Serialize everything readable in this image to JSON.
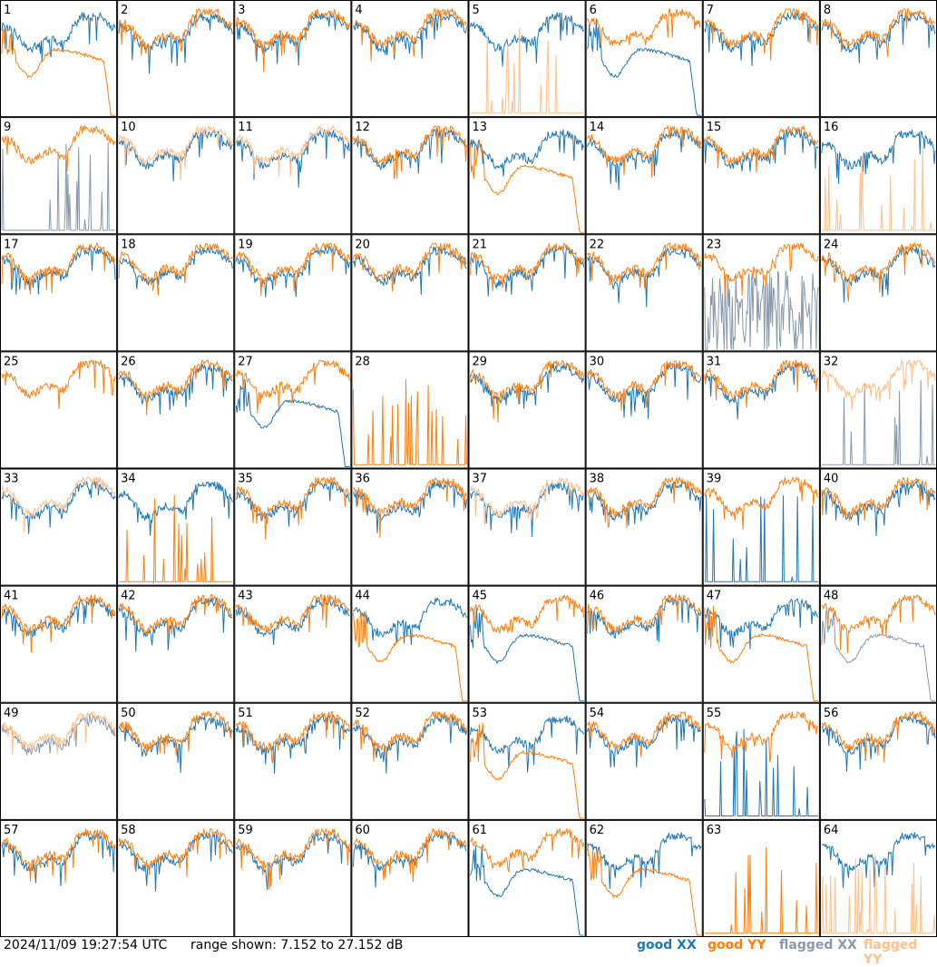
{
  "colors": {
    "good_xx": "#1f77b4",
    "good_yy": "#ff7f0e",
    "flagged_xx": "#8899aa",
    "flagged_yy": "#ffc08a",
    "grid_line": "#000000"
  },
  "footer": {
    "timestamp": "2024/11/09 19:27:54 UTC",
    "range_text": "range shown: 7.152 to 27.152 dB"
  },
  "legend": [
    {
      "label": "good XX",
      "color_key": "good_xx"
    },
    {
      "label": "good YY",
      "color_key": "good_yy"
    },
    {
      "label": "flagged XX",
      "color_key": "flagged_xx"
    },
    {
      "label": "flagged YY",
      "color_key": "flagged_yy"
    }
  ],
  "chart_data": {
    "type": "line",
    "layout_grid": "8x8 small multiples",
    "y_range_db": [
      7.152,
      27.152
    ],
    "panels": [
      {
        "id": 1,
        "xx": "normal",
        "yy": "decay"
      },
      {
        "id": 2,
        "xx": "normal",
        "yy": "normal"
      },
      {
        "id": 3,
        "xx": "normal",
        "yy": "normal"
      },
      {
        "id": 4,
        "xx": "normal",
        "yy": "normal"
      },
      {
        "id": 5,
        "xx": "normal",
        "yy": "spikes_flagged"
      },
      {
        "id": 6,
        "xx": "decay",
        "yy": "normal"
      },
      {
        "id": 7,
        "xx": "normal",
        "yy": "normal"
      },
      {
        "id": 8,
        "xx": "normal",
        "yy": "normal"
      },
      {
        "id": 9,
        "xx": "spikes_flagged",
        "yy": "normal"
      },
      {
        "id": 10,
        "xx": "normal",
        "yy": "flagged"
      },
      {
        "id": 11,
        "xx": "normal",
        "yy": "flagged"
      },
      {
        "id": 12,
        "xx": "normal",
        "yy": "normal"
      },
      {
        "id": 13,
        "xx": "normal",
        "yy": "decay"
      },
      {
        "id": 14,
        "xx": "normal",
        "yy": "normal"
      },
      {
        "id": 15,
        "xx": "normal",
        "yy": "normal"
      },
      {
        "id": 16,
        "xx": "normal",
        "yy": "spikes_flagged"
      },
      {
        "id": 17,
        "xx": "normal",
        "yy": "normal"
      },
      {
        "id": 18,
        "xx": "normal",
        "yy": "normal"
      },
      {
        "id": 19,
        "xx": "normal",
        "yy": "normal"
      },
      {
        "id": 20,
        "xx": "normal",
        "yy": "normal"
      },
      {
        "id": 21,
        "xx": "normal",
        "yy": "normal"
      },
      {
        "id": 22,
        "xx": "normal",
        "yy": "normal"
      },
      {
        "id": 23,
        "xx": "noisy_flagged",
        "yy": "normal"
      },
      {
        "id": 24,
        "xx": "normal",
        "yy": "normal"
      },
      {
        "id": 25,
        "xx": "none",
        "yy": "normal"
      },
      {
        "id": 26,
        "xx": "normal",
        "yy": "normal"
      },
      {
        "id": 27,
        "xx": "decay",
        "yy": "normal"
      },
      {
        "id": 28,
        "xx": "none",
        "yy": "spikes"
      },
      {
        "id": 29,
        "xx": "normal",
        "yy": "normal"
      },
      {
        "id": 30,
        "xx": "normal",
        "yy": "normal"
      },
      {
        "id": 31,
        "xx": "normal",
        "yy": "normal"
      },
      {
        "id": 32,
        "xx": "spikes_flagged",
        "yy": "flagged"
      },
      {
        "id": 33,
        "xx": "normal",
        "yy": "flagged"
      },
      {
        "id": 34,
        "xx": "normal",
        "yy": "spikes"
      },
      {
        "id": 35,
        "xx": "normal",
        "yy": "normal"
      },
      {
        "id": 36,
        "xx": "normal",
        "yy": "normal"
      },
      {
        "id": 37,
        "xx": "normal",
        "yy": "flagged"
      },
      {
        "id": 38,
        "xx": "normal",
        "yy": "normal"
      },
      {
        "id": 39,
        "xx": "spikes",
        "yy": "normal"
      },
      {
        "id": 40,
        "xx": "normal",
        "yy": "normal"
      },
      {
        "id": 41,
        "xx": "normal",
        "yy": "normal"
      },
      {
        "id": 42,
        "xx": "normal",
        "yy": "normal"
      },
      {
        "id": 43,
        "xx": "normal",
        "yy": "normal"
      },
      {
        "id": 44,
        "xx": "normal",
        "yy": "decay"
      },
      {
        "id": 45,
        "xx": "decay",
        "yy": "normal"
      },
      {
        "id": 46,
        "xx": "normal",
        "yy": "normal"
      },
      {
        "id": 47,
        "xx": "normal",
        "yy": "decay"
      },
      {
        "id": 48,
        "xx": "decay_flagged",
        "yy": "normal"
      },
      {
        "id": 49,
        "xx": "flagged",
        "yy": "flagged"
      },
      {
        "id": 50,
        "xx": "normal",
        "yy": "normal"
      },
      {
        "id": 51,
        "xx": "normal",
        "yy": "normal"
      },
      {
        "id": 52,
        "xx": "normal",
        "yy": "normal"
      },
      {
        "id": 53,
        "xx": "normal",
        "yy": "decay"
      },
      {
        "id": 54,
        "xx": "normal",
        "yy": "normal"
      },
      {
        "id": 55,
        "xx": "spikes",
        "yy": "normal"
      },
      {
        "id": 56,
        "xx": "normal",
        "yy": "normal"
      },
      {
        "id": 57,
        "xx": "normal",
        "yy": "normal"
      },
      {
        "id": 58,
        "xx": "normal",
        "yy": "normal"
      },
      {
        "id": 59,
        "xx": "normal",
        "yy": "normal"
      },
      {
        "id": 60,
        "xx": "normal",
        "yy": "normal"
      },
      {
        "id": 61,
        "xx": "decay",
        "yy": "normal"
      },
      {
        "id": 62,
        "xx": "normal",
        "yy": "decay"
      },
      {
        "id": 63,
        "xx": "none",
        "yy": "spikes"
      },
      {
        "id": 64,
        "xx": "normal",
        "yy": "spikes_flagged"
      }
    ]
  }
}
